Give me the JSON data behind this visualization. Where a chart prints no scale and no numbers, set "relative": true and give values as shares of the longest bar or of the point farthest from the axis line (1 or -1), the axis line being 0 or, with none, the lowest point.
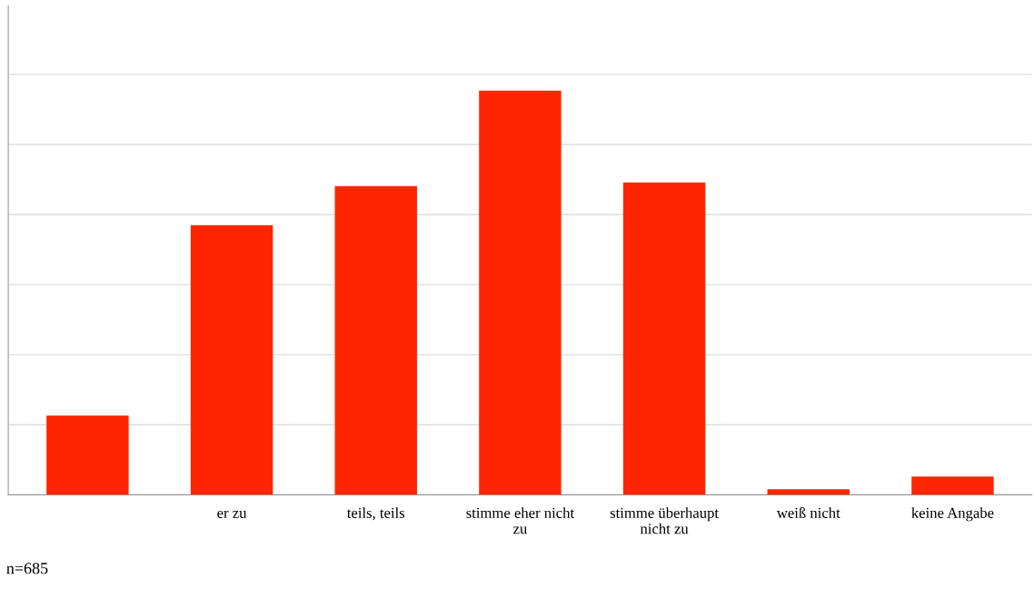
{
  "chart_data": {
    "type": "bar",
    "relative": true,
    "categories": [
      null,
      "er zu",
      "teils, teils",
      "stimme eher nicht zu",
      "stimme überhaupt nicht zu",
      "weiß nicht",
      "keine Angabe"
    ],
    "values": [
      0.196,
      0.667,
      0.764,
      1,
      0.773,
      0.0135,
      0.045
    ],
    "color": "#ff2500",
    "grid": "y",
    "annotations": [
      "n=685"
    ]
  }
}
